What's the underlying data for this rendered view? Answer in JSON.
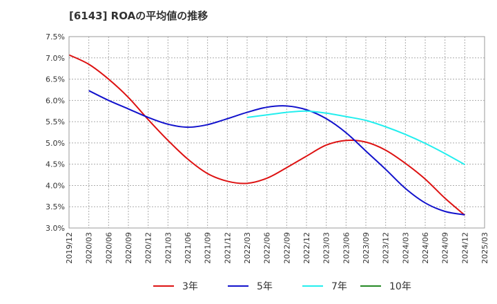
{
  "title": "[6143]  ROAの平均値の推移",
  "chart_data": {
    "type": "line",
    "title": "[6143]  ROAの平均値の推移",
    "xlabel": "",
    "ylabel": "",
    "x_ticks": [
      "2019/12",
      "2020/03",
      "2020/06",
      "2020/09",
      "2020/12",
      "2021/03",
      "2021/06",
      "2021/09",
      "2021/12",
      "2022/03",
      "2022/06",
      "2022/09",
      "2022/12",
      "2023/03",
      "2023/06",
      "2023/09",
      "2023/12",
      "2024/03",
      "2024/06",
      "2024/09",
      "2024/12",
      "2025/03"
    ],
    "y_ticks": [
      "3.0%",
      "3.5%",
      "4.0%",
      "4.5%",
      "5.0%",
      "5.5%",
      "6.0%",
      "6.5%",
      "7.0%",
      "7.5%"
    ],
    "ylim": [
      3.0,
      7.5
    ],
    "grid": true,
    "legend_position": "bottom",
    "series": [
      {
        "name": "3年",
        "color": "#dd1111",
        "x": [
          "2019/12",
          "2020/03",
          "2020/06",
          "2020/09",
          "2020/12",
          "2021/03",
          "2021/06",
          "2021/09",
          "2021/12",
          "2022/03",
          "2022/06",
          "2022/09",
          "2022/12",
          "2023/03",
          "2023/06",
          "2023/09",
          "2023/12",
          "2024/03",
          "2024/06",
          "2024/09",
          "2024/12"
        ],
        "values": [
          7.07,
          6.85,
          6.5,
          6.07,
          5.55,
          5.06,
          4.62,
          4.28,
          4.1,
          4.05,
          4.17,
          4.42,
          4.69,
          4.95,
          5.06,
          5.02,
          4.83,
          4.52,
          4.15,
          3.7,
          3.3
        ]
      },
      {
        "name": "5年",
        "color": "#1111cc",
        "x": [
          "2020/03",
          "2020/06",
          "2020/09",
          "2020/12",
          "2021/03",
          "2021/06",
          "2021/09",
          "2021/12",
          "2022/03",
          "2022/06",
          "2022/09",
          "2022/12",
          "2023/03",
          "2023/06",
          "2023/09",
          "2023/12",
          "2024/03",
          "2024/06",
          "2024/09",
          "2024/12"
        ],
        "values": [
          6.23,
          6.0,
          5.8,
          5.6,
          5.44,
          5.37,
          5.43,
          5.57,
          5.72,
          5.84,
          5.87,
          5.78,
          5.57,
          5.24,
          4.81,
          4.38,
          3.93,
          3.59,
          3.39,
          3.31
        ]
      },
      {
        "name": "7年",
        "color": "#22eeee",
        "x": [
          "2022/03",
          "2022/06",
          "2022/09",
          "2022/12",
          "2023/03",
          "2023/06",
          "2023/09",
          "2023/12",
          "2024/03",
          "2024/06",
          "2024/09",
          "2024/12"
        ],
        "values": [
          5.6,
          5.66,
          5.72,
          5.75,
          5.7,
          5.62,
          5.53,
          5.38,
          5.2,
          4.99,
          4.75,
          4.49
        ]
      },
      {
        "name": "10年",
        "color": "#228822",
        "x": [],
        "values": []
      }
    ]
  }
}
